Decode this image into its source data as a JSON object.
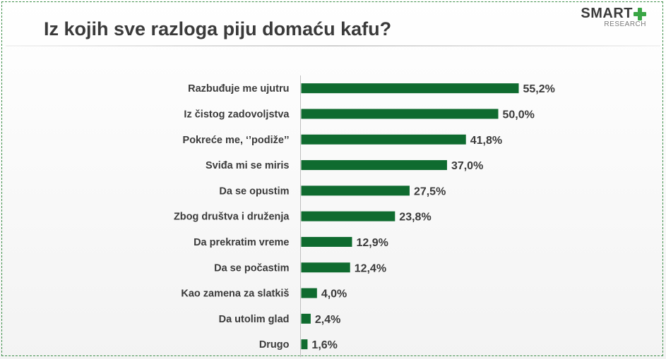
{
  "title": "Iz kojih sve razloga piju domaću kafu?",
  "logo": {
    "main": "SMART",
    "sub": "RESEARCH"
  },
  "colors": {
    "bar": "#0f6b2f",
    "logo_plus": "#3aa645",
    "text": "#3a3a3a"
  },
  "chart_data": {
    "type": "bar",
    "orientation": "horizontal",
    "title": "Iz kojih sve razloga piju domaću kafu?",
    "categories": [
      "Razbuđuje me ujutru",
      "Iz čistog zadovoljstva",
      "Pokreće me, ‘’podiže’’",
      "Sviđa mi se miris",
      "Da se opustim",
      "Zbog društva i druženja",
      "Da prekratim vreme",
      "Da se počastim",
      "Kao zamena za slatkiš",
      "Da utolim glad",
      "Drugo"
    ],
    "values": [
      55.2,
      50.0,
      41.8,
      37.0,
      27.5,
      23.8,
      12.9,
      12.4,
      4.0,
      2.4,
      1.6
    ],
    "value_labels": [
      "55,2%",
      "50,0%",
      "41,8%",
      "37,0%",
      "27,5%",
      "23,8%",
      "12,9%",
      "12,4%",
      "4,0%",
      "2,4%",
      "1,6%"
    ],
    "xlabel": "",
    "ylabel": "",
    "xlim": [
      0,
      60
    ],
    "grid": false,
    "legend": "none"
  }
}
